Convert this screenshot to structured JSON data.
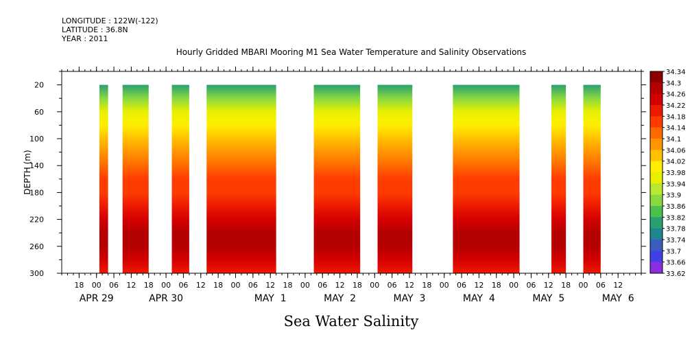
{
  "header": {
    "longitude": "LONGITUDE : 122W(-122)",
    "latitude": "LATITUDE : 36.8N",
    "year": "YEAR : 2011"
  },
  "chart_data": {
    "type": "heatmap",
    "title": "Hourly Gridded MBARI Mooring M1 Sea Water Temperature and Salinity Observations",
    "xlabel": "Sea Water Salinity",
    "ylabel": "DEPTH (m)",
    "ylim": [
      300,
      0
    ],
    "y_ticks": [
      20,
      60,
      100,
      140,
      180,
      220,
      260,
      300
    ],
    "x_start": "2011-04-28 12:00",
    "x_end": "2011-05-06 20:00",
    "x_hour_ticks": [
      {
        "t": "2011-04-28 18:00",
        "label": "18"
      },
      {
        "t": "2011-04-29 00:00",
        "label": "00"
      },
      {
        "t": "2011-04-29 06:00",
        "label": "06"
      },
      {
        "t": "2011-04-29 12:00",
        "label": "12"
      },
      {
        "t": "2011-04-29 18:00",
        "label": "18"
      },
      {
        "t": "2011-04-30 00:00",
        "label": "00"
      },
      {
        "t": "2011-04-30 06:00",
        "label": "06"
      },
      {
        "t": "2011-04-30 12:00",
        "label": "12"
      },
      {
        "t": "2011-04-30 18:00",
        "label": "18"
      },
      {
        "t": "2011-05-01 00:00",
        "label": "00"
      },
      {
        "t": "2011-05-01 06:00",
        "label": "06"
      },
      {
        "t": "2011-05-01 12:00",
        "label": "12"
      },
      {
        "t": "2011-05-01 18:00",
        "label": "18"
      },
      {
        "t": "2011-05-02 00:00",
        "label": "00"
      },
      {
        "t": "2011-05-02 06:00",
        "label": "06"
      },
      {
        "t": "2011-05-02 12:00",
        "label": "12"
      },
      {
        "t": "2011-05-02 18:00",
        "label": "18"
      },
      {
        "t": "2011-05-03 00:00",
        "label": "00"
      },
      {
        "t": "2011-05-03 06:00",
        "label": "06"
      },
      {
        "t": "2011-05-03 12:00",
        "label": "12"
      },
      {
        "t": "2011-05-03 18:00",
        "label": "18"
      },
      {
        "t": "2011-05-04 00:00",
        "label": "00"
      },
      {
        "t": "2011-05-04 06:00",
        "label": "06"
      },
      {
        "t": "2011-05-04 12:00",
        "label": "12"
      },
      {
        "t": "2011-05-04 18:00",
        "label": "18"
      },
      {
        "t": "2011-05-05 00:00",
        "label": "00"
      },
      {
        "t": "2011-05-05 06:00",
        "label": "06"
      },
      {
        "t": "2011-05-05 12:00",
        "label": "12"
      },
      {
        "t": "2011-05-05 18:00",
        "label": "18"
      },
      {
        "t": "2011-05-06 00:00",
        "label": "00"
      },
      {
        "t": "2011-05-06 06:00",
        "label": "06"
      },
      {
        "t": "2011-05-06 12:00",
        "label": "12"
      }
    ],
    "x_day_labels": [
      {
        "t": "2011-04-29 00:00",
        "label": "APR 29"
      },
      {
        "t": "2011-04-30 00:00",
        "label": "APR 30"
      },
      {
        "t": "2011-05-01 12:00",
        "label": "MAY  1"
      },
      {
        "t": "2011-05-02 12:00",
        "label": "MAY  2"
      },
      {
        "t": "2011-05-03 12:00",
        "label": "MAY  3"
      },
      {
        "t": "2011-05-04 12:00",
        "label": "MAY  4"
      },
      {
        "t": "2011-05-05 12:00",
        "label": "MAY  5"
      },
      {
        "t": "2011-05-06 12:00",
        "label": "MAY  6"
      }
    ],
    "colorbar": {
      "levels": [
        "34.34",
        "34.3",
        "34.26",
        "34.22",
        "34.18",
        "34.14",
        "34.1",
        "34.06",
        "34.02",
        "33.98",
        "33.94",
        "33.9",
        "33.86",
        "33.82",
        "33.78",
        "33.74",
        "33.7",
        "33.66",
        "33.62"
      ],
      "colors": [
        "#8b0000",
        "#b40000",
        "#d40000",
        "#ee1a00",
        "#ff3c00",
        "#ff6a00",
        "#ff9400",
        "#ffc000",
        "#ffee00",
        "#e8f000",
        "#b8e830",
        "#88d840",
        "#4cbf4c",
        "#2aa070",
        "#1e8690",
        "#3c5cc0",
        "#4040e8",
        "#8a2ee0",
        "#d020f0"
      ]
    },
    "data_segments": [
      {
        "start": "2011-04-29 01:00",
        "end": "2011-04-29 04:00"
      },
      {
        "start": "2011-04-29 09:00",
        "end": "2011-04-29 18:00"
      },
      {
        "start": "2011-04-30 02:00",
        "end": "2011-04-30 08:00"
      },
      {
        "start": "2011-04-30 14:00",
        "end": "2011-05-01 14:00"
      },
      {
        "start": "2011-05-02 03:00",
        "end": "2011-05-02 19:00"
      },
      {
        "start": "2011-05-03 01:00",
        "end": "2011-05-03 13:00"
      },
      {
        "start": "2011-05-04 03:00",
        "end": "2011-05-05 02:00"
      },
      {
        "start": "2011-05-05 13:00",
        "end": "2011-05-05 18:00"
      },
      {
        "start": "2011-05-06 00:00",
        "end": "2011-05-06 06:00"
      }
    ],
    "depth_profile": [
      {
        "depth": 20,
        "salinity": 33.82
      },
      {
        "depth": 40,
        "salinity": 33.9
      },
      {
        "depth": 60,
        "salinity": 33.96
      },
      {
        "depth": 80,
        "salinity": 34.03
      },
      {
        "depth": 100,
        "salinity": 34.07
      },
      {
        "depth": 120,
        "salinity": 34.11
      },
      {
        "depth": 140,
        "salinity": 34.15
      },
      {
        "depth": 160,
        "salinity": 34.18
      },
      {
        "depth": 180,
        "salinity": 34.19
      },
      {
        "depth": 200,
        "salinity": 34.21
      },
      {
        "depth": 220,
        "salinity": 34.24
      },
      {
        "depth": 240,
        "salinity": 34.28
      },
      {
        "depth": 260,
        "salinity": 34.3
      },
      {
        "depth": 280,
        "salinity": 34.26
      },
      {
        "depth": 300,
        "salinity": 34.22
      }
    ]
  }
}
